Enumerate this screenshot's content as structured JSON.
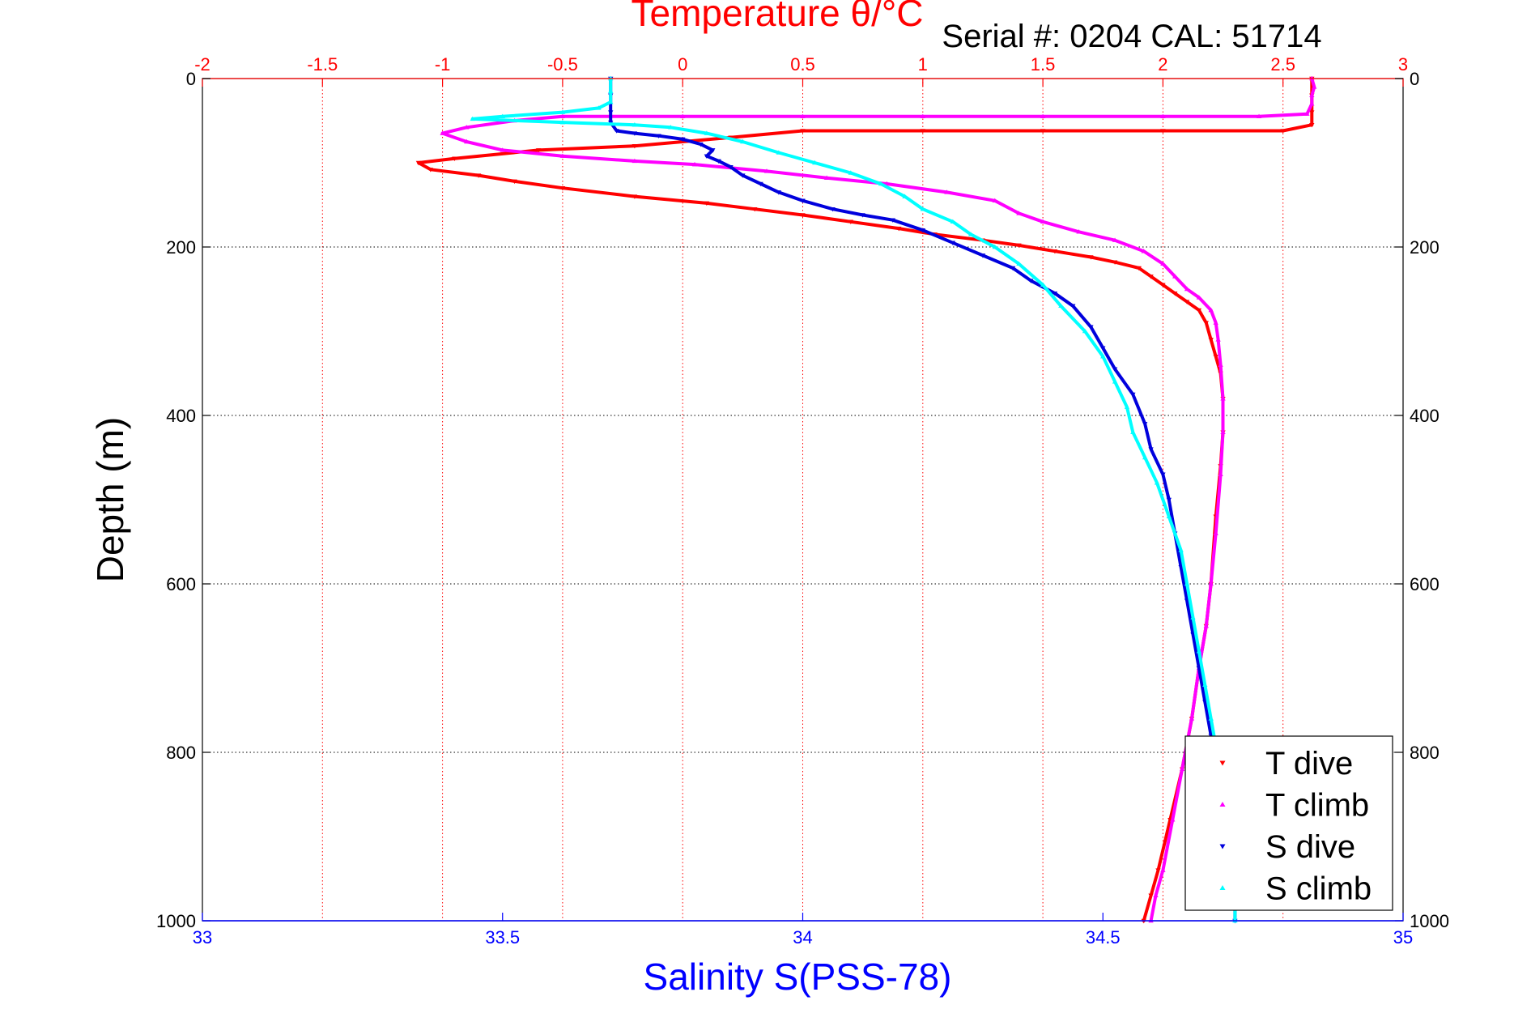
{
  "chart_data": {
    "type": "scatter",
    "title": "Temperature θ/°C",
    "subtitle": "Serial #: 0204  CAL: 51714",
    "xlabel_top": "Temperature θ/°C",
    "xlabel_bottom": "Salinity S(PSS-78)",
    "ylabel": "Depth (m)",
    "x_top_range": [
      -2,
      3
    ],
    "x_top_ticks": [
      "-2",
      "-1.5",
      "-1",
      "-0.5",
      "0",
      "0.5",
      "1",
      "1.5",
      "2",
      "2.5",
      "3"
    ],
    "x_bottom_range": [
      33,
      35
    ],
    "x_bottom_ticks": [
      "33",
      "33.5",
      "34",
      "34.5",
      "35"
    ],
    "y_range": [
      0,
      1000
    ],
    "y_ticks": [
      "0",
      "200",
      "400",
      "600",
      "800",
      "1000"
    ],
    "y_reversed": true,
    "grid": true,
    "legend_position": "bottom-right",
    "colors": {
      "t_dive": "#ff0000",
      "t_climb": "#ff00ff",
      "s_dive": "#0000dd",
      "s_climb": "#00ffff",
      "top_axis": "#ff0000",
      "bottom_axis": "#0000ff"
    },
    "series": [
      {
        "name": "T dive",
        "axis": "temperature",
        "marker": "triangle-down",
        "points": [
          [
            2.62,
            0
          ],
          [
            2.62,
            20
          ],
          [
            2.62,
            40
          ],
          [
            2.62,
            55
          ],
          [
            2.5,
            62
          ],
          [
            2.0,
            62
          ],
          [
            1.5,
            62
          ],
          [
            1.0,
            62
          ],
          [
            0.5,
            62
          ],
          [
            0.2,
            70
          ],
          [
            -0.2,
            80
          ],
          [
            -0.6,
            85
          ],
          [
            -0.95,
            95
          ],
          [
            -1.1,
            100
          ],
          [
            -1.05,
            108
          ],
          [
            -0.85,
            115
          ],
          [
            -0.7,
            122
          ],
          [
            -0.5,
            130
          ],
          [
            -0.2,
            140
          ],
          [
            0.1,
            148
          ],
          [
            0.3,
            155
          ],
          [
            0.5,
            162
          ],
          [
            0.7,
            170
          ],
          [
            0.9,
            178
          ],
          [
            1.05,
            185
          ],
          [
            1.25,
            192
          ],
          [
            1.4,
            198
          ],
          [
            1.55,
            205
          ],
          [
            1.7,
            212
          ],
          [
            1.8,
            218
          ],
          [
            1.9,
            225
          ],
          [
            1.95,
            235
          ],
          [
            2.0,
            245
          ],
          [
            2.05,
            255
          ],
          [
            2.1,
            265
          ],
          [
            2.15,
            275
          ],
          [
            2.18,
            290
          ],
          [
            2.2,
            310
          ],
          [
            2.22,
            330
          ],
          [
            2.24,
            350
          ],
          [
            2.25,
            380
          ],
          [
            2.25,
            420
          ],
          [
            2.24,
            460
          ],
          [
            2.22,
            520
          ],
          [
            2.2,
            600
          ],
          [
            2.18,
            650
          ],
          [
            2.15,
            700
          ],
          [
            2.12,
            760
          ],
          [
            2.08,
            820
          ],
          [
            2.03,
            880
          ],
          [
            1.98,
            940
          ],
          [
            1.95,
            970
          ],
          [
            1.92,
            1000
          ]
        ]
      },
      {
        "name": "T climb",
        "axis": "temperature",
        "marker": "triangle-up",
        "points": [
          [
            2.62,
            0
          ],
          [
            2.63,
            10
          ],
          [
            2.62,
            20
          ],
          [
            2.62,
            30
          ],
          [
            2.6,
            42
          ],
          [
            2.4,
            45
          ],
          [
            2.0,
            45
          ],
          [
            1.5,
            45
          ],
          [
            1.0,
            45
          ],
          [
            0.5,
            45
          ],
          [
            0.0,
            45
          ],
          [
            -0.5,
            45
          ],
          [
            -0.7,
            50
          ],
          [
            -0.9,
            58
          ],
          [
            -1.0,
            65
          ],
          [
            -0.9,
            75
          ],
          [
            -0.75,
            85
          ],
          [
            -0.5,
            92
          ],
          [
            -0.2,
            98
          ],
          [
            0.05,
            102
          ],
          [
            0.35,
            110
          ],
          [
            0.6,
            118
          ],
          [
            0.85,
            125
          ],
          [
            1.1,
            135
          ],
          [
            1.3,
            145
          ],
          [
            1.4,
            160
          ],
          [
            1.5,
            170
          ],
          [
            1.65,
            182
          ],
          [
            1.8,
            192
          ],
          [
            1.92,
            205
          ],
          [
            2.0,
            220
          ],
          [
            2.05,
            235
          ],
          [
            2.1,
            250
          ],
          [
            2.15,
            260
          ],
          [
            2.2,
            275
          ],
          [
            2.22,
            290
          ],
          [
            2.23,
            310
          ],
          [
            2.24,
            340
          ],
          [
            2.25,
            380
          ],
          [
            2.25,
            420
          ],
          [
            2.24,
            470
          ],
          [
            2.22,
            540
          ],
          [
            2.2,
            600
          ],
          [
            2.18,
            650
          ],
          [
            2.15,
            700
          ],
          [
            2.12,
            760
          ],
          [
            2.08,
            820
          ],
          [
            2.04,
            880
          ],
          [
            2.0,
            940
          ],
          [
            1.97,
            970
          ],
          [
            1.95,
            1000
          ]
        ]
      },
      {
        "name": "S dive",
        "axis": "salinity",
        "marker": "triangle-down",
        "points": [
          [
            33.68,
            0
          ],
          [
            33.68,
            20
          ],
          [
            33.68,
            40
          ],
          [
            33.68,
            52
          ],
          [
            33.69,
            62
          ],
          [
            33.72,
            65
          ],
          [
            33.76,
            68
          ],
          [
            33.8,
            72
          ],
          [
            33.83,
            78
          ],
          [
            33.85,
            85
          ],
          [
            33.84,
            92
          ],
          [
            33.86,
            98
          ],
          [
            33.88,
            105
          ],
          [
            33.9,
            115
          ],
          [
            33.93,
            125
          ],
          [
            33.96,
            135
          ],
          [
            34.0,
            145
          ],
          [
            34.05,
            155
          ],
          [
            34.1,
            162
          ],
          [
            34.15,
            168
          ],
          [
            34.2,
            180
          ],
          [
            34.25,
            195
          ],
          [
            34.3,
            210
          ],
          [
            34.35,
            225
          ],
          [
            34.38,
            240
          ],
          [
            34.42,
            255
          ],
          [
            34.45,
            270
          ],
          [
            34.48,
            295
          ],
          [
            34.5,
            320
          ],
          [
            34.52,
            345
          ],
          [
            34.55,
            375
          ],
          [
            34.57,
            410
          ],
          [
            34.58,
            440
          ],
          [
            34.6,
            470
          ],
          [
            34.61,
            500
          ],
          [
            34.62,
            540
          ],
          [
            34.63,
            580
          ],
          [
            34.64,
            620
          ],
          [
            34.65,
            660
          ],
          [
            34.66,
            700
          ],
          [
            34.67,
            740
          ],
          [
            34.68,
            780
          ],
          [
            34.69,
            820
          ],
          [
            34.7,
            860
          ],
          [
            34.71,
            900
          ],
          [
            34.71,
            940
          ],
          [
            34.72,
            970
          ],
          [
            34.72,
            1000
          ]
        ]
      },
      {
        "name": "S climb",
        "axis": "salinity",
        "marker": "triangle-up",
        "points": [
          [
            33.68,
            0
          ],
          [
            33.68,
            15
          ],
          [
            33.68,
            28
          ],
          [
            33.66,
            35
          ],
          [
            33.6,
            40
          ],
          [
            33.5,
            45
          ],
          [
            33.45,
            48
          ],
          [
            33.6,
            52
          ],
          [
            33.72,
            55
          ],
          [
            33.78,
            58
          ],
          [
            33.84,
            65
          ],
          [
            33.9,
            75
          ],
          [
            33.96,
            88
          ],
          [
            34.02,
            100
          ],
          [
            34.08,
            112
          ],
          [
            34.13,
            125
          ],
          [
            34.17,
            140
          ],
          [
            34.2,
            155
          ],
          [
            34.25,
            170
          ],
          [
            34.28,
            185
          ],
          [
            34.32,
            200
          ],
          [
            34.36,
            220
          ],
          [
            34.4,
            245
          ],
          [
            34.43,
            270
          ],
          [
            34.47,
            300
          ],
          [
            34.5,
            330
          ],
          [
            34.52,
            360
          ],
          [
            34.54,
            390
          ],
          [
            34.55,
            420
          ],
          [
            34.57,
            450
          ],
          [
            34.59,
            480
          ],
          [
            34.61,
            520
          ],
          [
            34.63,
            560
          ],
          [
            34.64,
            600
          ],
          [
            34.65,
            640
          ],
          [
            34.66,
            680
          ],
          [
            34.67,
            720
          ],
          [
            34.68,
            760
          ],
          [
            34.69,
            800
          ],
          [
            34.7,
            850
          ],
          [
            34.71,
            900
          ],
          [
            34.72,
            950
          ],
          [
            34.72,
            1000
          ]
        ]
      }
    ]
  }
}
